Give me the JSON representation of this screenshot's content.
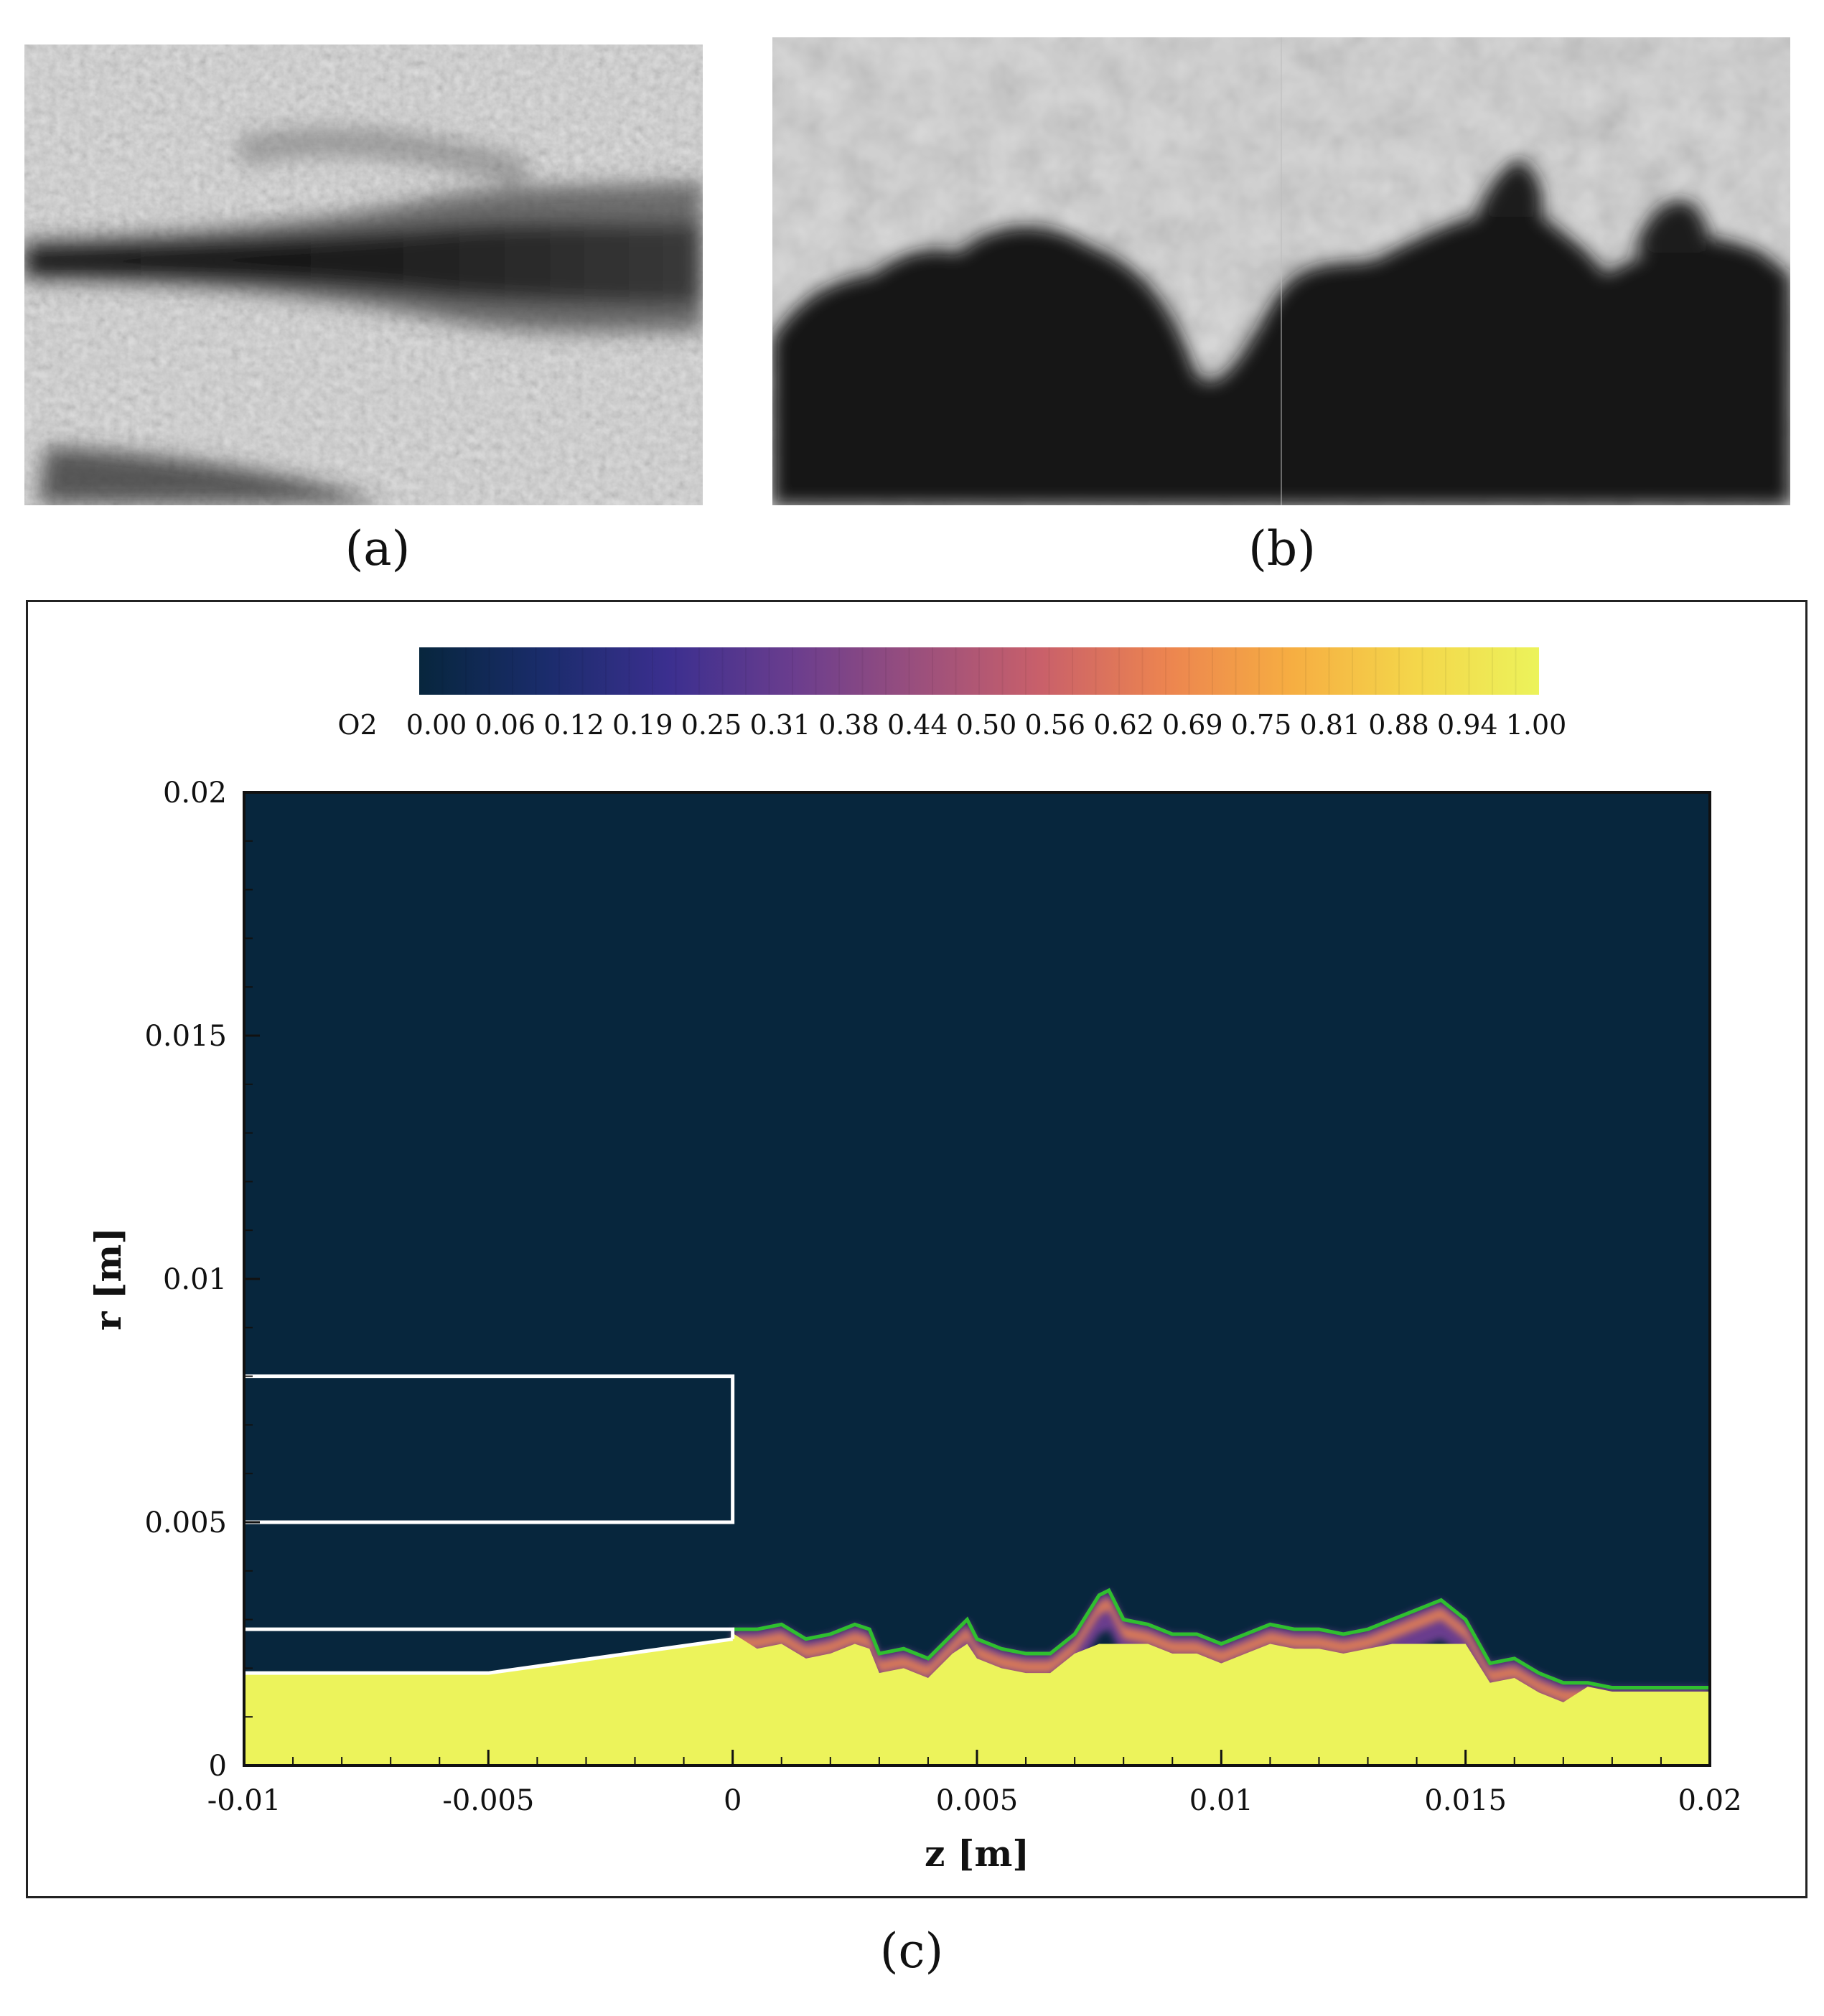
{
  "panels": {
    "a": {
      "label": "(a)"
    },
    "b": {
      "label": "(b)"
    },
    "c": {
      "label": "(c)"
    }
  },
  "chart_data": {
    "type": "heatmap",
    "title": "",
    "xlabel": "z [m]",
    "ylabel": "r [m]",
    "xlim": [
      -0.01,
      0.02
    ],
    "ylim": [
      0,
      0.02
    ],
    "x_ticks": [
      "-0.01",
      "-0.005",
      "0",
      "0.005",
      "0.01",
      "0.015",
      "0.02"
    ],
    "x_tick_values": [
      -0.01,
      -0.005,
      0,
      0.005,
      0.01,
      0.015,
      0.02
    ],
    "y_ticks": [
      "0",
      "0.005",
      "0.01",
      "0.015",
      "0.02"
    ],
    "y_tick_values": [
      0,
      0.005,
      0.01,
      0.015,
      0.02
    ],
    "colorbar": {
      "variable": "O2",
      "labels": [
        "0.00",
        "0.06",
        "0.12",
        "0.19",
        "0.25",
        "0.31",
        "0.38",
        "0.44",
        "0.50",
        "0.56",
        "0.62",
        "0.69",
        "0.75",
        "0.81",
        "0.88",
        "0.94",
        "1.00"
      ],
      "range": [
        0,
        1
      ],
      "colors": [
        "#07263d",
        "#1a2c6b",
        "#3b2f8f",
        "#6a3d8e",
        "#9a4f7d",
        "#c9606a",
        "#ec8450",
        "#f6ad42",
        "#f4d64a",
        "#ecf35b"
      ]
    },
    "background_value": 0.0,
    "jet_core_value": 1.0,
    "injector_outline_color": "#ffffff",
    "interface_contour_color": "#2fbf2f",
    "injector_outer_post": {
      "z": [
        -0.01,
        0
      ],
      "r": [
        0.005,
        0.008
      ]
    },
    "injector_lip": {
      "z": [
        -0.01,
        0
      ],
      "r": [
        0.0026,
        0.0028
      ]
    },
    "injector_inner_wall": {
      "z": [
        -0.01,
        -0.005,
        0
      ],
      "r": [
        0.0019,
        0.0019,
        0.0026
      ]
    },
    "interface": {
      "z": [
        0,
        0.0005,
        0.001,
        0.0015,
        0.002,
        0.0025,
        0.0028,
        0.003,
        0.0035,
        0.004,
        0.0045,
        0.0048,
        0.005,
        0.0055,
        0.006,
        0.0065,
        0.007,
        0.0075,
        0.0077,
        0.008,
        0.0085,
        0.009,
        0.0095,
        0.01,
        0.0105,
        0.011,
        0.0115,
        0.012,
        0.0125,
        0.013,
        0.0135,
        0.014,
        0.0145,
        0.015,
        0.0155,
        0.016,
        0.0165,
        0.017,
        0.0175,
        0.018,
        0.0185,
        0.019,
        0.0195,
        0.02
      ],
      "r": [
        0.0028,
        0.0028,
        0.0029,
        0.0026,
        0.0027,
        0.0029,
        0.0028,
        0.0023,
        0.0024,
        0.0022,
        0.0027,
        0.003,
        0.0026,
        0.0024,
        0.0023,
        0.0023,
        0.0027,
        0.0035,
        0.0036,
        0.003,
        0.0029,
        0.0027,
        0.0027,
        0.0025,
        0.0027,
        0.0029,
        0.0028,
        0.0028,
        0.0027,
        0.0028,
        0.003,
        0.0032,
        0.0034,
        0.003,
        0.0021,
        0.0022,
        0.0019,
        0.0017,
        0.0017,
        0.0016,
        0.0016,
        0.0016,
        0.0016,
        0.0016
      ]
    }
  }
}
